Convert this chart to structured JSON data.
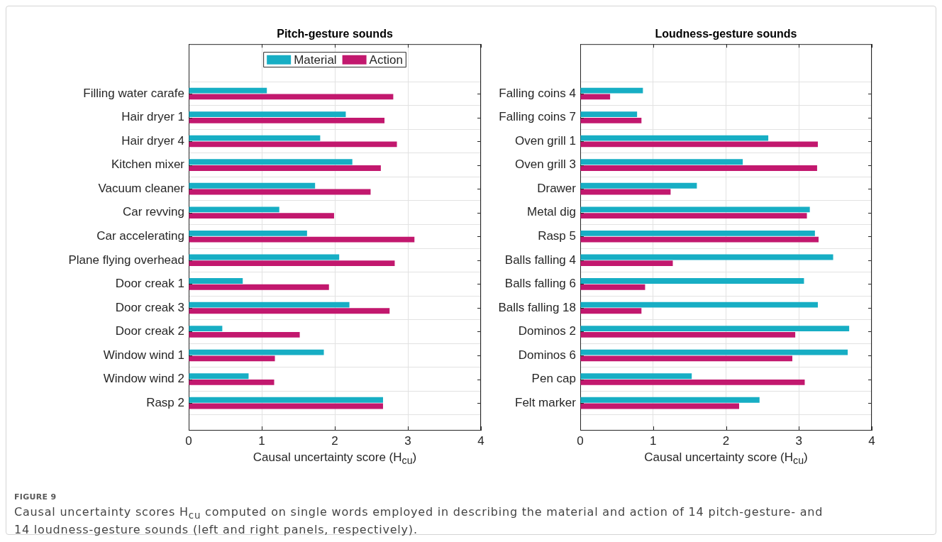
{
  "chart_data": [
    {
      "type": "bar",
      "orientation": "horizontal",
      "title": "Pitch-gesture sounds",
      "xlabel": "Causal uncertainty score (H$_{cu}$)",
      "categories": [
        "Filling water carafe",
        "Hair dryer 1",
        "Hair dryer 4",
        "Kitchen mixer",
        "Vacuum cleaner",
        "Car revving",
        "Car accelerating",
        "Plane flying overhead",
        "Door creak 1",
        "Door creak 3",
        "Door creak 2",
        "Window wind 1",
        "Window wind 2",
        "Rasp 2"
      ],
      "series": [
        {
          "name": "Material",
          "color": "#17aec4",
          "values": [
            1.07,
            2.15,
            1.8,
            2.24,
            1.73,
            1.24,
            1.62,
            2.06,
            0.74,
            2.2,
            0.46,
            1.85,
            0.82,
            2.66
          ]
        },
        {
          "name": "Action",
          "color": "#c2186e",
          "values": [
            2.8,
            2.68,
            2.85,
            2.63,
            2.49,
            1.99,
            3.09,
            2.82,
            1.92,
            2.75,
            1.52,
            1.18,
            1.17,
            2.66
          ]
        }
      ],
      "xlim": [
        0,
        4
      ],
      "xticks": [
        0,
        1,
        2,
        3,
        4
      ],
      "grid": true,
      "legend": "top",
      "annotations": [
        "FIGURE 9",
        "Causal uncertainty scores H$_{cu}$ computed on single words employed in describing the material and action of 14 pitch-gesture- and 14 loudness-gesture sounds (left and right panels, respectively)."
      ]
    },
    {
      "type": "bar",
      "orientation": "horizontal",
      "title": "Loudness-gesture sounds",
      "xlabel": "Causal uncertainty score (H$_{cu}$)",
      "categories": [
        "Falling coins 4",
        "Falling coins 7",
        "Oven grill 1",
        "Oven grill 3",
        "Drawer",
        "Metal dig",
        "Rasp 5",
        "Balls falling 4",
        "Balls falling 6",
        "Balls falling 18",
        "Dominos 2",
        "Dominos 6",
        "Pen cap",
        "Felt marker"
      ],
      "series": [
        {
          "color": "#17aec4",
          "values": [
            0.86,
            0.78,
            2.58,
            2.23,
            1.6,
            3.15,
            3.22,
            3.47,
            3.07,
            3.26,
            3.69,
            3.67,
            1.53,
            2.46
          ]
        },
        {
          "color": "#c2186e",
          "values": [
            0.41,
            0.84,
            3.26,
            3.25,
            1.24,
            3.11,
            3.27,
            1.27,
            0.89,
            0.84,
            2.95,
            2.91,
            3.08,
            2.18
          ]
        }
      ],
      "xlim": [
        0,
        4
      ],
      "xticks": [
        0,
        1,
        2,
        3,
        4
      ],
      "grid": true
    }
  ]
}
